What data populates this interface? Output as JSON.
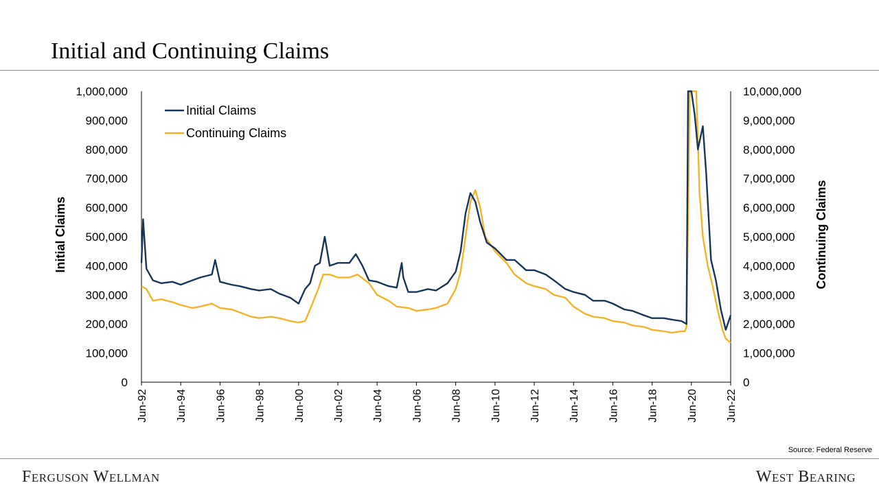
{
  "header": {
    "title": "Initial and Continuing Claims"
  },
  "footer": {
    "source": "Source: Federal Reserve",
    "brand_left": "Ferguson Wellman",
    "brand_right": "West Bearing"
  },
  "colors": {
    "initial": "#15355a",
    "continuing": "#f4b12a",
    "rule": "#7f8e9e"
  },
  "chart_data": {
    "type": "line",
    "title": "",
    "ylabel_left": "Initial Claims",
    "ylabel_right": "Continuing Claims",
    "x_range": [
      "1992-06",
      "2022-06"
    ],
    "x_ticks": [
      "Jun-92",
      "Jun-94",
      "Jun-96",
      "Jun-98",
      "Jun-00",
      "Jun-02",
      "Jun-04",
      "Jun-06",
      "Jun-08",
      "Jun-10",
      "Jun-12",
      "Jun-14",
      "Jun-16",
      "Jun-18",
      "Jun-20",
      "Jun-22"
    ],
    "y_left": {
      "min": 0,
      "max": 1000000,
      "step": 100000,
      "ticks": [
        "0",
        "100,000",
        "200,000",
        "300,000",
        "400,000",
        "500,000",
        "600,000",
        "700,000",
        "800,000",
        "900,000",
        "1,000,000"
      ]
    },
    "y_right": {
      "min": 0,
      "max": 10000000,
      "step": 1000000,
      "ticks": [
        "0",
        "1,000,000",
        "2,000,000",
        "3,000,000",
        "4,000,000",
        "5,000,000",
        "6,000,000",
        "7,000,000",
        "8,000,000",
        "9,000,000",
        "10,000,000"
      ]
    },
    "legend": {
      "position": "top-left",
      "entries": [
        "Initial Claims",
        "Continuing Claims"
      ]
    },
    "grid": false,
    "series": [
      {
        "name": "Initial Claims",
        "axis": "left",
        "x": [
          "1992-06",
          "1992-07",
          "1992-09",
          "1993-01",
          "1993-06",
          "1994-01",
          "1994-06",
          "1995-01",
          "1995-06",
          "1996-01",
          "1996-03",
          "1996-06",
          "1997-01",
          "1997-06",
          "1998-01",
          "1998-06",
          "1999-01",
          "1999-06",
          "2000-01",
          "2000-06",
          "2000-10",
          "2001-01",
          "2001-04",
          "2001-07",
          "2001-10",
          "2002-01",
          "2002-06",
          "2003-01",
          "2003-05",
          "2003-09",
          "2004-01",
          "2004-06",
          "2005-01",
          "2005-06",
          "2005-09",
          "2005-10",
          "2006-01",
          "2006-06",
          "2007-01",
          "2007-06",
          "2008-01",
          "2008-06",
          "2008-09",
          "2008-12",
          "2009-03",
          "2009-06",
          "2009-09",
          "2010-01",
          "2010-06",
          "2011-01",
          "2011-06",
          "2012-01",
          "2012-06",
          "2013-01",
          "2013-06",
          "2014-01",
          "2014-06",
          "2015-01",
          "2015-06",
          "2016-01",
          "2016-06",
          "2017-01",
          "2017-06",
          "2018-01",
          "2018-06",
          "2019-01",
          "2019-06",
          "2019-12",
          "2020-03",
          "2020-04",
          "2020-06",
          "2020-08",
          "2020-10",
          "2021-01",
          "2021-03",
          "2021-06",
          "2021-09",
          "2021-12",
          "2022-03",
          "2022-06"
        ],
        "values": [
          410000,
          560000,
          390000,
          350000,
          340000,
          345000,
          335000,
          350000,
          360000,
          370000,
          420000,
          345000,
          335000,
          330000,
          320000,
          315000,
          320000,
          305000,
          290000,
          270000,
          320000,
          340000,
          400000,
          410000,
          500000,
          400000,
          410000,
          410000,
          440000,
          400000,
          350000,
          345000,
          330000,
          325000,
          410000,
          360000,
          310000,
          310000,
          320000,
          315000,
          340000,
          380000,
          450000,
          580000,
          650000,
          620000,
          550000,
          480000,
          460000,
          420000,
          420000,
          385000,
          385000,
          370000,
          350000,
          320000,
          310000,
          300000,
          280000,
          280000,
          270000,
          250000,
          245000,
          230000,
          220000,
          220000,
          215000,
          210000,
          200000,
          1000000,
          1000000,
          920000,
          800000,
          880000,
          720000,
          420000,
          350000,
          250000,
          180000,
          230000
        ]
      },
      {
        "name": "Continuing Claims",
        "axis": "right",
        "x": [
          "1992-06",
          "1992-09",
          "1993-01",
          "1993-06",
          "1994-01",
          "1994-06",
          "1995-01",
          "1995-06",
          "1996-01",
          "1996-06",
          "1997-01",
          "1997-06",
          "1998-01",
          "1998-06",
          "1999-01",
          "1999-06",
          "2000-01",
          "2000-06",
          "2000-10",
          "2001-01",
          "2001-06",
          "2001-09",
          "2002-01",
          "2002-06",
          "2003-01",
          "2003-06",
          "2004-01",
          "2004-06",
          "2005-01",
          "2005-06",
          "2006-01",
          "2006-06",
          "2007-01",
          "2007-06",
          "2008-01",
          "2008-06",
          "2008-09",
          "2008-12",
          "2009-03",
          "2009-06",
          "2009-09",
          "2009-12",
          "2010-06",
          "2011-01",
          "2011-06",
          "2012-01",
          "2012-06",
          "2013-01",
          "2013-06",
          "2014-01",
          "2014-06",
          "2015-01",
          "2015-06",
          "2016-01",
          "2016-06",
          "2017-01",
          "2017-06",
          "2018-01",
          "2018-06",
          "2019-01",
          "2019-06",
          "2019-12",
          "2020-02",
          "2020-03",
          "2020-05",
          "2020-07",
          "2020-09",
          "2020-11",
          "2021-01",
          "2021-04",
          "2021-07",
          "2021-10",
          "2022-01",
          "2022-03",
          "2022-06"
        ],
        "values": [
          3300000,
          3200000,
          2800000,
          2850000,
          2750000,
          2650000,
          2550000,
          2600000,
          2700000,
          2550000,
          2500000,
          2400000,
          2250000,
          2200000,
          2250000,
          2200000,
          2100000,
          2050000,
          2100000,
          2500000,
          3200000,
          3700000,
          3700000,
          3600000,
          3600000,
          3700000,
          3400000,
          3000000,
          2800000,
          2600000,
          2550000,
          2450000,
          2500000,
          2550000,
          2700000,
          3200000,
          3800000,
          5000000,
          6200000,
          6600000,
          6000000,
          5000000,
          4500000,
          4100000,
          3700000,
          3400000,
          3300000,
          3200000,
          3000000,
          2900000,
          2600000,
          2350000,
          2250000,
          2200000,
          2100000,
          2050000,
          1950000,
          1900000,
          1800000,
          1750000,
          1700000,
          1750000,
          1750000,
          1900000,
          10000000,
          10000000,
          10000000,
          6500000,
          5000000,
          4000000,
          3300000,
          2500000,
          1800000,
          1500000,
          1350000
        ]
      }
    ]
  }
}
